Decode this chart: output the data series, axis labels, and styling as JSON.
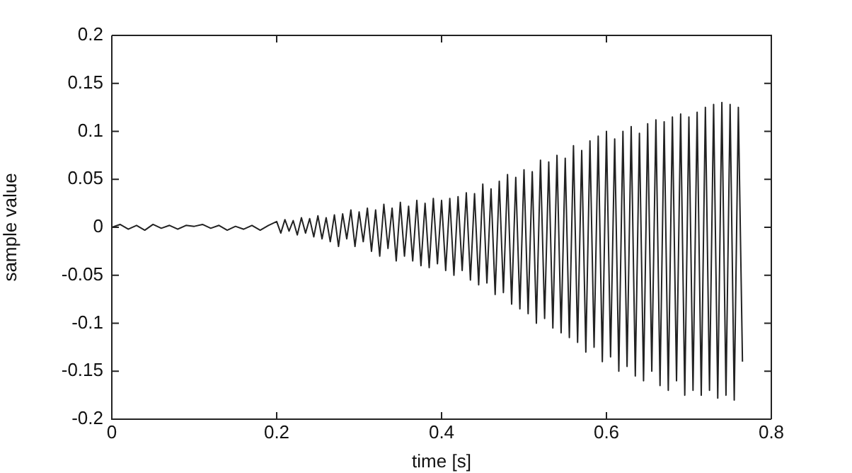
{
  "chart_data": {
    "type": "line",
    "xlabel": "time [s]",
    "ylabel": "sample value",
    "xlim": [
      0,
      0.8
    ],
    "xticks": [
      0,
      0.2,
      0.4,
      0.6,
      0.8
    ],
    "ylim": [
      -0.2,
      0.2
    ],
    "yticks": [
      -0.2,
      -0.15,
      -0.1,
      -0.05,
      0,
      0.05,
      0.1,
      0.15,
      0.2
    ],
    "grid": false,
    "legend": false,
    "marker": "none",
    "line_style": "solid",
    "series": [
      {
        "color": "#222222",
        "x": [
          0,
          0.01,
          0.02,
          0.03,
          0.04,
          0.05,
          0.06,
          0.07,
          0.08,
          0.09,
          0.1,
          0.11,
          0.12,
          0.13,
          0.14,
          0.15,
          0.16,
          0.17,
          0.18,
          0.19,
          0.2,
          0.205,
          0.21,
          0.215,
          0.22,
          0.225,
          0.23,
          0.235,
          0.24,
          0.245,
          0.25,
          0.255,
          0.26,
          0.265,
          0.27,
          0.275,
          0.28,
          0.285,
          0.29,
          0.295,
          0.3,
          0.305,
          0.31,
          0.315,
          0.32,
          0.325,
          0.33,
          0.335,
          0.34,
          0.345,
          0.35,
          0.355,
          0.36,
          0.365,
          0.37,
          0.375,
          0.38,
          0.385,
          0.39,
          0.395,
          0.4,
          0.405,
          0.41,
          0.415,
          0.42,
          0.425,
          0.43,
          0.435,
          0.44,
          0.445,
          0.45,
          0.455,
          0.46,
          0.465,
          0.47,
          0.475,
          0.48,
          0.485,
          0.49,
          0.495,
          0.5,
          0.505,
          0.51,
          0.515,
          0.52,
          0.525,
          0.53,
          0.535,
          0.54,
          0.545,
          0.55,
          0.555,
          0.56,
          0.565,
          0.57,
          0.575,
          0.58,
          0.585,
          0.59,
          0.595,
          0.6,
          0.605,
          0.61,
          0.615,
          0.62,
          0.625,
          0.63,
          0.635,
          0.64,
          0.645,
          0.65,
          0.655,
          0.66,
          0.665,
          0.67,
          0.675,
          0.68,
          0.685,
          0.69,
          0.695,
          0.7,
          0.705,
          0.71,
          0.715,
          0.72,
          0.725,
          0.73,
          0.735,
          0.74,
          0.745,
          0.75,
          0.755,
          0.76,
          0.765
        ],
        "values": [
          0,
          0.003,
          -0.002,
          0.002,
          -0.003,
          0.003,
          -0.001,
          0.002,
          -0.002,
          0.002,
          0.001,
          0.003,
          -0.001,
          0.002,
          -0.003,
          0.001,
          -0.002,
          0.002,
          -0.003,
          0.002,
          0.006,
          -0.006,
          0.008,
          -0.004,
          0.007,
          -0.008,
          0.01,
          -0.006,
          0.009,
          -0.01,
          0.012,
          -0.012,
          0.01,
          -0.015,
          0.013,
          -0.02,
          0.014,
          -0.012,
          0.018,
          -0.02,
          0.016,
          -0.015,
          0.02,
          -0.025,
          0.018,
          -0.03,
          0.024,
          -0.022,
          0.02,
          -0.035,
          0.026,
          -0.03,
          0.022,
          -0.035,
          0.028,
          -0.04,
          0.025,
          -0.042,
          0.03,
          -0.038,
          0.028,
          -0.045,
          0.03,
          -0.05,
          0.032,
          -0.045,
          0.036,
          -0.055,
          0.035,
          -0.06,
          0.045,
          -0.058,
          0.04,
          -0.07,
          0.048,
          -0.068,
          0.055,
          -0.08,
          0.052,
          -0.085,
          0.06,
          -0.09,
          0.058,
          -0.1,
          0.07,
          -0.095,
          0.068,
          -0.105,
          0.075,
          -0.11,
          0.072,
          -0.115,
          0.085,
          -0.12,
          0.08,
          -0.13,
          0.09,
          -0.125,
          0.095,
          -0.14,
          0.1,
          -0.135,
          0.092,
          -0.15,
          0.1,
          -0.145,
          0.105,
          -0.155,
          0.098,
          -0.16,
          0.108,
          -0.15,
          0.112,
          -0.165,
          0.11,
          -0.17,
          0.115,
          -0.16,
          0.118,
          -0.175,
          0.115,
          -0.17,
          0.12,
          -0.175,
          0.125,
          -0.17,
          0.128,
          -0.178,
          0.13,
          -0.175,
          0.128,
          -0.18,
          0.125,
          -0.14
        ]
      }
    ]
  }
}
